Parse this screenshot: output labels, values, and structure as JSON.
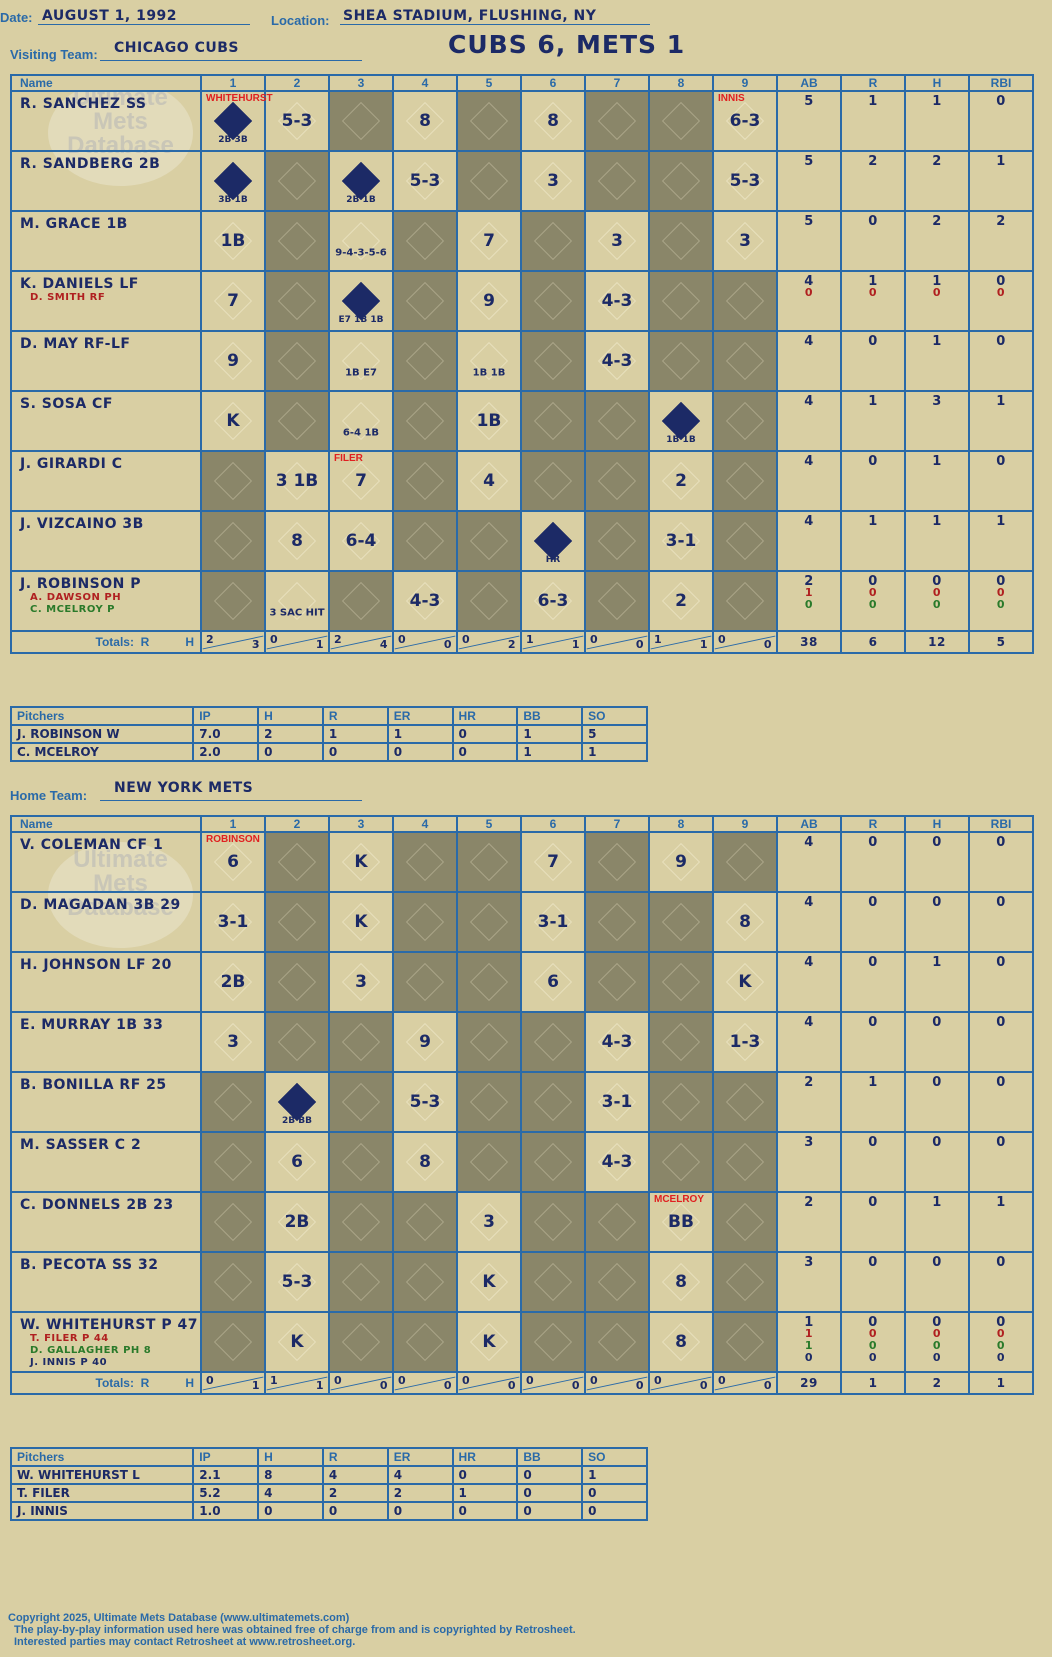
{
  "header": {
    "date_label": "Date:",
    "date": "AUGUST 1, 1992",
    "location_label": "Location:",
    "location": "SHEA STADIUM, FLUSHING, NY",
    "visiting_label": "Visiting Team:",
    "visiting_team": "CHICAGO CUBS",
    "home_label": "Home Team:",
    "home_team": "NEW YORK METS",
    "title": "CUBS 6, METS 1"
  },
  "watermark": "Ultimate Mets Database",
  "columns": [
    "Name",
    "1",
    "2",
    "3",
    "4",
    "5",
    "6",
    "7",
    "8",
    "9",
    "AB",
    "R",
    "H",
    "RBI"
  ],
  "totals_label": "Totals:",
  "totals_r": "R",
  "totals_h": "H",
  "visitors": {
    "rows": [
      {
        "name": "R. SANCHEZ SS",
        "subs": [],
        "stats": [
          [
            "5",
            "1",
            "1",
            "0"
          ]
        ],
        "cells": [
          "2B 3B scored",
          "5-3",
          "",
          "8",
          "",
          "8",
          "",
          "",
          "6-3"
        ],
        "pitch_note": {
          "col": 0,
          "text": "WHITEHURST"
        },
        "pitch_note2": {
          "col": 8,
          "text": "INNIS"
        }
      },
      {
        "name": "R. SANDBERG 2B",
        "subs": [],
        "stats": [
          [
            "5",
            "2",
            "2",
            "1"
          ]
        ],
        "cells": [
          "3B 1B scored",
          "",
          "2B 1B scored",
          "5-3",
          "",
          "3",
          "",
          "",
          "5-3"
        ]
      },
      {
        "name": "M. GRACE 1B",
        "subs": [],
        "stats": [
          [
            "5",
            "0",
            "2",
            "2"
          ]
        ],
        "cells": [
          "1B",
          "",
          "9-4-3-5-6",
          "",
          "7",
          "",
          "3",
          "",
          "3"
        ]
      },
      {
        "name": "K. DANIELS LF",
        "subs": [
          "D. SMITH RF"
        ],
        "stats": [
          [
            "4",
            "1",
            "1",
            "0"
          ],
          [
            "0",
            "0",
            "0",
            "0"
          ]
        ],
        "cells": [
          "7",
          "",
          "E7 1B 1B scored",
          "",
          "9",
          "",
          "4-3",
          "",
          ""
        ]
      },
      {
        "name": "D. MAY RF-LF",
        "subs": [],
        "stats": [
          [
            "4",
            "0",
            "1",
            "0"
          ]
        ],
        "cells": [
          "9",
          "",
          "1B E7",
          "",
          "1B 1B",
          "",
          "4-3",
          "",
          ""
        ]
      },
      {
        "name": "S. SOSA CF",
        "subs": [],
        "stats": [
          [
            "4",
            "1",
            "3",
            "1"
          ]
        ],
        "cells": [
          "K",
          "",
          "6-4 1B",
          "",
          "1B",
          "",
          "",
          "1B 1B scored",
          ""
        ]
      },
      {
        "name": "J. GIRARDI C",
        "subs": [],
        "stats": [
          [
            "4",
            "0",
            "1",
            "0"
          ]
        ],
        "cells": [
          "",
          "3 1B",
          "7",
          "",
          "4",
          "",
          "",
          "2",
          ""
        ],
        "pitch_note": {
          "col": 2,
          "text": "FILER"
        }
      },
      {
        "name": "J. VIZCAINO 3B",
        "subs": [],
        "stats": [
          [
            "4",
            "1",
            "1",
            "1"
          ]
        ],
        "cells": [
          "",
          "8",
          "6-4",
          "",
          "",
          "HR scored",
          "",
          "3-1",
          ""
        ]
      },
      {
        "name": "J. ROBINSON P",
        "subs": [
          "A. DAWSON PH",
          "C. MCELROY P"
        ],
        "stats": [
          [
            "2",
            "0",
            "0",
            "0"
          ],
          [
            "1",
            "0",
            "0",
            "0"
          ],
          [
            "0",
            "0",
            "0",
            "0"
          ]
        ],
        "cells": [
          "",
          "3 SAC HIT",
          "",
          "4-3",
          "",
          "6-3",
          "",
          "2",
          ""
        ]
      }
    ],
    "totals": [
      [
        "2",
        "3"
      ],
      [
        "0",
        "1"
      ],
      [
        "2",
        "4"
      ],
      [
        "0",
        "0"
      ],
      [
        "0",
        "2"
      ],
      [
        "1",
        "1"
      ],
      [
        "0",
        "0"
      ],
      [
        "1",
        "1"
      ],
      [
        "0",
        "0"
      ]
    ],
    "totals_stats": [
      "38",
      "6",
      "12",
      "5"
    ],
    "pitchers_header": [
      "Pitchers",
      "IP",
      "H",
      "R",
      "ER",
      "HR",
      "BB",
      "SO"
    ],
    "pitchers": [
      [
        "J. ROBINSON  W",
        "7.0",
        "2",
        "1",
        "1",
        "0",
        "1",
        "5"
      ],
      [
        "C. MCELROY",
        "2.0",
        "0",
        "0",
        "0",
        "0",
        "1",
        "1"
      ]
    ]
  },
  "home": {
    "rows": [
      {
        "name": "V. COLEMAN CF  1",
        "subs": [],
        "stats": [
          [
            "4",
            "0",
            "0",
            "0"
          ]
        ],
        "cells": [
          "6",
          "",
          "K",
          "",
          "",
          "7",
          "",
          "9",
          ""
        ],
        "pitch_note": {
          "col": 0,
          "text": "ROBINSON"
        }
      },
      {
        "name": "D. MAGADAN 3B  29",
        "subs": [],
        "stats": [
          [
            "4",
            "0",
            "0",
            "0"
          ]
        ],
        "cells": [
          "3-1",
          "",
          "K",
          "",
          "",
          "3-1",
          "",
          "",
          "8"
        ]
      },
      {
        "name": "H. JOHNSON LF  20",
        "subs": [],
        "stats": [
          [
            "4",
            "0",
            "1",
            "0"
          ]
        ],
        "cells": [
          "2B",
          "",
          "3",
          "",
          "",
          "6",
          "",
          "",
          "K"
        ]
      },
      {
        "name": "E. MURRAY 1B  33",
        "subs": [],
        "stats": [
          [
            "4",
            "0",
            "0",
            "0"
          ]
        ],
        "cells": [
          "3",
          "",
          "",
          "9",
          "",
          "",
          "4-3",
          "",
          "1-3"
        ]
      },
      {
        "name": "B. BONILLA RF  25",
        "subs": [],
        "stats": [
          [
            "2",
            "1",
            "0",
            "0"
          ]
        ],
        "cells": [
          "",
          "2B BB scored",
          "",
          "5-3",
          "",
          "",
          "3-1",
          "",
          ""
        ]
      },
      {
        "name": "M. SASSER C  2",
        "subs": [],
        "stats": [
          [
            "3",
            "0",
            "0",
            "0"
          ]
        ],
        "cells": [
          "",
          "6",
          "",
          "8",
          "",
          "",
          "4-3",
          "",
          ""
        ]
      },
      {
        "name": "C. DONNELS 2B  23",
        "subs": [],
        "stats": [
          [
            "2",
            "0",
            "1",
            "1"
          ]
        ],
        "cells": [
          "",
          "2B",
          "",
          "",
          "3",
          "",
          "",
          "BB",
          ""
        ],
        "pitch_note": {
          "col": 7,
          "text": "MCELROY"
        }
      },
      {
        "name": "B. PECOTA SS  32",
        "subs": [],
        "stats": [
          [
            "3",
            "0",
            "0",
            "0"
          ]
        ],
        "cells": [
          "",
          "5-3",
          "",
          "",
          "K",
          "",
          "",
          "8",
          ""
        ]
      },
      {
        "name": "W. WHITEHURST P  47",
        "subs": [
          "T. FILER P  44",
          "D. GALLAGHER PH  8",
          "J. INNIS P  40"
        ],
        "stats": [
          [
            "1",
            "0",
            "0",
            "0"
          ],
          [
            "1",
            "0",
            "0",
            "0"
          ],
          [
            "1",
            "0",
            "0",
            "0"
          ],
          [
            "0",
            "0",
            "0",
            "0"
          ]
        ],
        "cells": [
          "",
          "K",
          "",
          "",
          "K",
          "",
          "",
          "8",
          ""
        ]
      }
    ],
    "totals": [
      [
        "0",
        "1"
      ],
      [
        "1",
        "1"
      ],
      [
        "0",
        "0"
      ],
      [
        "0",
        "0"
      ],
      [
        "0",
        "0"
      ],
      [
        "0",
        "0"
      ],
      [
        "0",
        "0"
      ],
      [
        "0",
        "0"
      ],
      [
        "0",
        "0"
      ]
    ],
    "totals_stats": [
      "29",
      "1",
      "2",
      "1"
    ],
    "pitchers_header": [
      "Pitchers",
      "IP",
      "H",
      "R",
      "ER",
      "HR",
      "BB",
      "SO"
    ],
    "pitchers": [
      [
        "W. WHITEHURST  L",
        "2.1",
        "8",
        "4",
        "4",
        "0",
        "0",
        "1"
      ],
      [
        "T. FILER",
        "5.2",
        "4",
        "2",
        "2",
        "1",
        "0",
        "0"
      ],
      [
        "J. INNIS",
        "1.0",
        "0",
        "0",
        "0",
        "0",
        "0",
        "0"
      ]
    ]
  },
  "footer": {
    "line1": "Copyright 2025, Ultimate Mets Database (www.ultimatemets.com)",
    "line2": "The play-by-play information used here was obtained free of charge from and is copyrighted by Retrosheet.",
    "line3": "Interested parties may contact Retrosheet at www.retrosheet.org."
  },
  "colors": {
    "background": "#d9cfa3",
    "grid": "#2a6aa8",
    "ink": "#1c2a66",
    "shade": "#8a8669",
    "note_red": "#e02020",
    "sub_red": "#b02020",
    "sub_green": "#2a7a2a"
  }
}
